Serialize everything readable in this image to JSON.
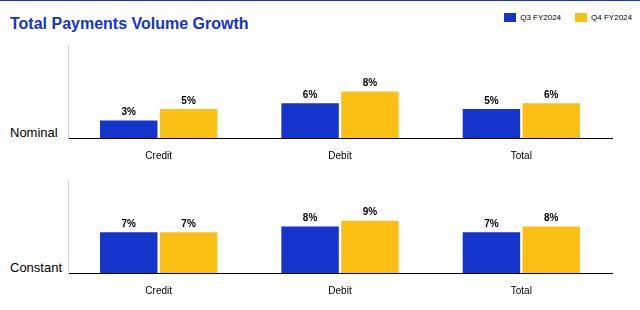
{
  "title": "Total Payments Volume Growth",
  "legend": "top-right",
  "chart_data": [
    {
      "type": "bar",
      "title": "Nominal",
      "categories": [
        "Credit",
        "Debit",
        "Total"
      ],
      "series": [
        {
          "name": "Q3 FY2024",
          "color": "#1434CB",
          "values": [
            3,
            6,
            5
          ],
          "value_labels": [
            "3%",
            "6%",
            "5%"
          ]
        },
        {
          "name": "Q4 FY2024",
          "color": "#FCC015",
          "values": [
            5,
            8,
            6
          ],
          "value_labels": [
            "5%",
            "8%",
            "6%"
          ]
        }
      ],
      "ylim": [
        0,
        16
      ],
      "grid": false,
      "data_labels": true,
      "tick_labels": "x"
    },
    {
      "type": "bar",
      "title": "Constant",
      "categories": [
        "Credit",
        "Debit",
        "Total"
      ],
      "series": [
        {
          "name": "Q3 FY2024",
          "color": "#1434CB",
          "values": [
            7,
            8,
            7
          ],
          "value_labels": [
            "7%",
            "8%",
            "7%"
          ]
        },
        {
          "name": "Q4 FY2024",
          "color": "#FCC015",
          "values": [
            7,
            9,
            8
          ],
          "value_labels": [
            "7%",
            "9%",
            "8%"
          ]
        }
      ],
      "ylim": [
        0,
        16
      ],
      "grid": false,
      "data_labels": true,
      "tick_labels": "x"
    }
  ]
}
